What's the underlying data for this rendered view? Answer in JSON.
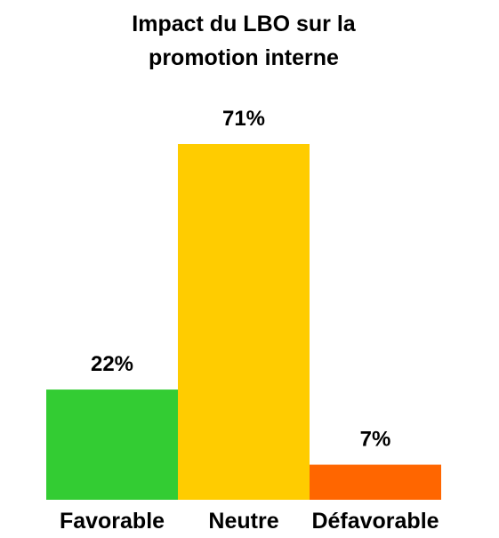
{
  "chart_data": {
    "type": "bar",
    "title_lines": [
      "Impact du LBO sur la",
      "promotion interne"
    ],
    "categories": [
      "Favorable",
      "Neutre",
      "Défavorable"
    ],
    "values": [
      22,
      71,
      7
    ],
    "value_labels": [
      "22%",
      "71%",
      "7%"
    ],
    "colors": [
      "#33cc33",
      "#ffcc00",
      "#ff6600"
    ],
    "ylim": [
      0,
      71
    ],
    "grid": false,
    "legend": "none",
    "xlabel": "",
    "ylabel": ""
  }
}
